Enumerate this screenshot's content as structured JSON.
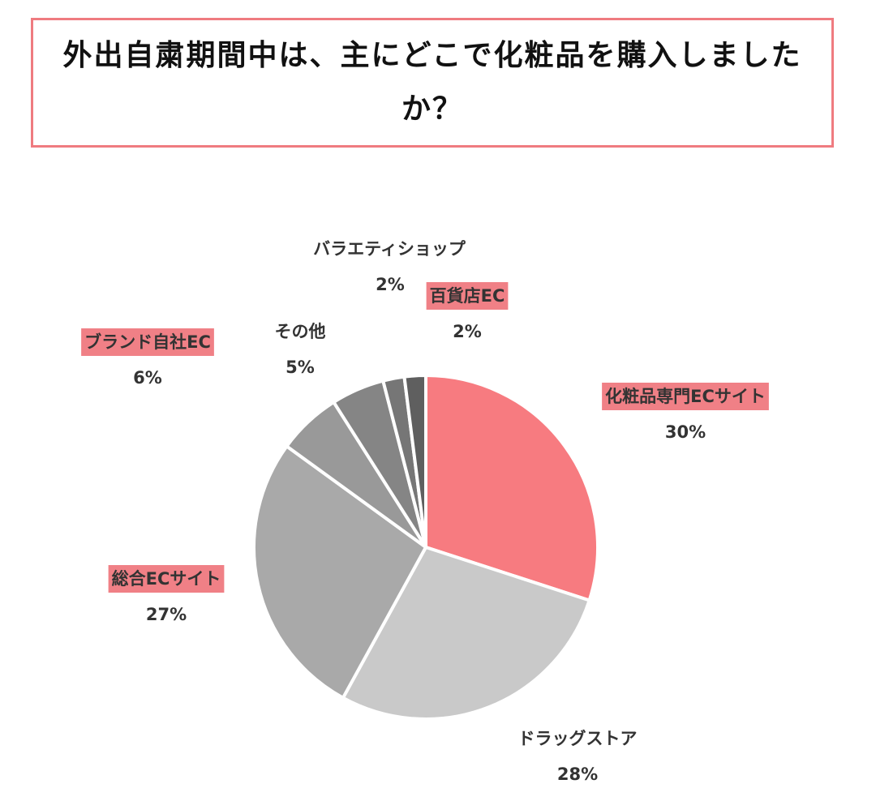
{
  "title": "外出自粛期間中は、主にどこで化粧品を購入しましたか？",
  "chart_data": {
    "type": "pie",
    "title": "外出自粛期間中は、主にどこで化粧品を購入しましたか？",
    "slices": [
      {
        "label": "化粧品専門ECサイト",
        "value": 30,
        "value_label": "30%",
        "color": "#f77b80",
        "highlight": true
      },
      {
        "label": "ドラッグストア",
        "value": 28,
        "value_label": "28%",
        "color": "#c9c9c9",
        "highlight": false
      },
      {
        "label": "総合ECサイト",
        "value": 27,
        "value_label": "27%",
        "color": "#a9a9a9",
        "highlight": true
      },
      {
        "label": "ブランド自社EC",
        "value": 6,
        "value_label": "6%",
        "color": "#999999",
        "highlight": true
      },
      {
        "label": "その他",
        "value": 5,
        "value_label": "5%",
        "color": "#858585",
        "highlight": false
      },
      {
        "label": "バラエティショップ",
        "value": 2,
        "value_label": "2%",
        "color": "#767676",
        "highlight": false
      },
      {
        "label": "百貨店EC",
        "value": 2,
        "value_label": "2%",
        "color": "#5f5f5f",
        "highlight": true
      }
    ],
    "start": "12 o'clock",
    "direction": "clockwise",
    "legend": "none"
  }
}
